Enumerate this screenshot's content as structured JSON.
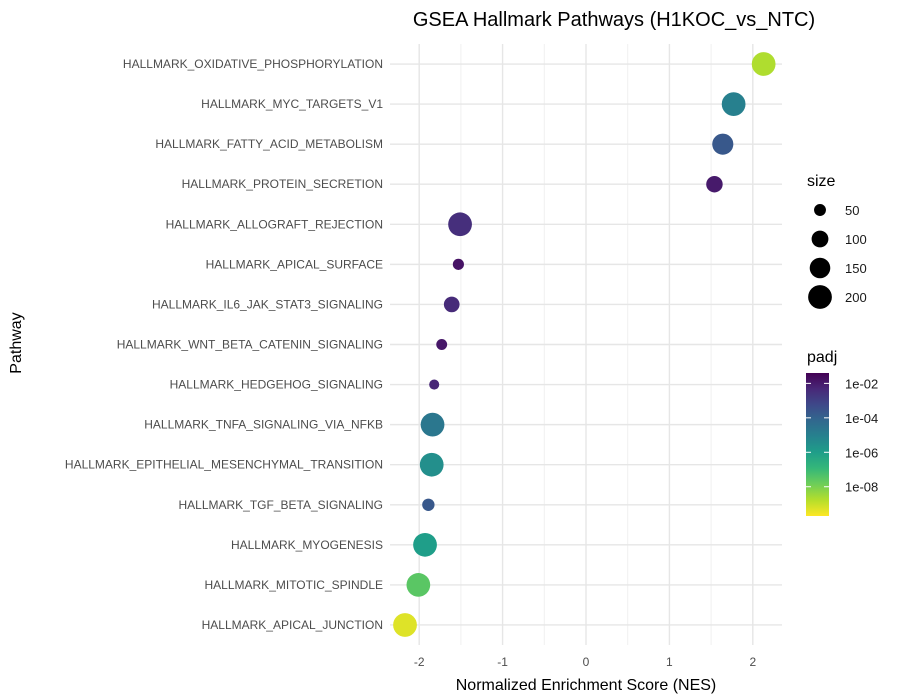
{
  "chart_data": {
    "type": "scatter",
    "title": "GSEA Hallmark Pathways (H1KOC_vs_NTC)",
    "xlabel": "Normalized Enrichment Score (NES)",
    "ylabel": "Pathway",
    "xlim": [
      -2.35,
      2.35
    ],
    "x_ticks": [
      -2,
      -1,
      0,
      1,
      2
    ],
    "x_tick_labels": [
      "-2",
      "-1",
      "0",
      "1",
      "2"
    ],
    "grid": true,
    "pathways": [
      {
        "name": "HALLMARK_OXIDATIVE_PHOSPHORYLATION",
        "nes": 2.13,
        "size": 200,
        "padj": 2e-09
      },
      {
        "name": "HALLMARK_MYC_TARGETS_V1",
        "nes": 1.77,
        "size": 200,
        "padj": 1e-05
      },
      {
        "name": "HALLMARK_FATTY_ACID_METABOLISM",
        "nes": 1.64,
        "size": 158,
        "padj": 0.0002
      },
      {
        "name": "HALLMARK_PROTEIN_SECRETION",
        "nes": 1.54,
        "size": 96,
        "padj": 0.01
      },
      {
        "name": "HALLMARK_ALLOGRAFT_REJECTION",
        "nes": -1.51,
        "size": 200,
        "padj": 0.003
      },
      {
        "name": "HALLMARK_APICAL_SURFACE",
        "nes": -1.53,
        "size": 44,
        "padj": 0.015
      },
      {
        "name": "HALLMARK_IL6_JAK_STAT3_SIGNALING",
        "nes": -1.61,
        "size": 87,
        "padj": 0.004
      },
      {
        "name": "HALLMARK_WNT_BETA_CATENIN_SIGNALING",
        "nes": -1.73,
        "size": 42,
        "padj": 0.012
      },
      {
        "name": "HALLMARK_HEDGEHOG_SIGNALING",
        "nes": -1.82,
        "size": 36,
        "padj": 0.005
      },
      {
        "name": "HALLMARK_TNFA_SIGNALING_VIA_NFKB",
        "nes": -1.84,
        "size": 200,
        "padj": 2e-05
      },
      {
        "name": "HALLMARK_EPITHELIAL_MESENCHYMAL_TRANSITION",
        "nes": -1.85,
        "size": 200,
        "padj": 3e-06
      },
      {
        "name": "HALLMARK_TGF_BETA_SIGNALING",
        "nes": -1.89,
        "size": 54,
        "padj": 0.0002
      },
      {
        "name": "HALLMARK_MYOGENESIS",
        "nes": -1.93,
        "size": 200,
        "padj": 1e-06
      },
      {
        "name": "HALLMARK_MITOTIC_SPINDLE",
        "nes": -2.01,
        "size": 199,
        "padj": 3e-08
      },
      {
        "name": "HALLMARK_APICAL_JUNCTION",
        "nes": -2.17,
        "size": 200,
        "padj": 5e-10
      }
    ],
    "legend_size": {
      "title": "size",
      "values": [
        50,
        100,
        150,
        200
      ],
      "labels": [
        "50",
        "100",
        "150",
        "200"
      ]
    },
    "legend_padj": {
      "title": "padj",
      "range": [
        2e-10,
        0.04
      ],
      "ticks": [
        0.01,
        0.0001,
        1e-06,
        1e-08
      ],
      "labels": [
        "1e-02",
        "1e-04",
        "1e-06",
        "1e-08"
      ],
      "colormap": "viridis",
      "colors": [
        "#440154",
        "#482878",
        "#3e4989",
        "#31688e",
        "#26828e",
        "#1f9e89",
        "#35b779",
        "#6ece58",
        "#b5de2b",
        "#fde725"
      ]
    },
    "legend_placement": "right"
  }
}
